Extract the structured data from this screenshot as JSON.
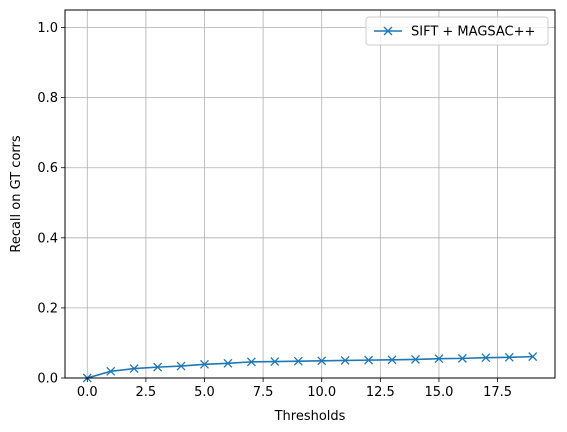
{
  "chart_data": {
    "type": "line",
    "title": "",
    "xlabel": "Thresholds",
    "ylabel": "Recall on GT corrs",
    "xlim": [
      -0.95,
      19.95
    ],
    "ylim": [
      0.0,
      1.05
    ],
    "x_ticks": [
      0.0,
      2.5,
      5.0,
      7.5,
      10.0,
      12.5,
      15.0,
      17.5
    ],
    "x_tick_labels": [
      "0.0",
      "2.5",
      "5.0",
      "7.5",
      "10.0",
      "12.5",
      "15.0",
      "17.5"
    ],
    "y_ticks": [
      0.0,
      0.2,
      0.4,
      0.6,
      0.8,
      1.0
    ],
    "y_tick_labels": [
      "0.0",
      "0.2",
      "0.4",
      "0.6",
      "0.8",
      "1.0"
    ],
    "grid": true,
    "legend_position": "top-right",
    "series": [
      {
        "name": "SIFT + MAGSAC++",
        "color": "#1f77b4",
        "marker": "x",
        "x": [
          0,
          1,
          2,
          3,
          4,
          5,
          6,
          7,
          8,
          9,
          10,
          11,
          12,
          13,
          14,
          15,
          16,
          17,
          18,
          19
        ],
        "y": [
          0.0,
          0.019,
          0.027,
          0.031,
          0.034,
          0.039,
          0.042,
          0.046,
          0.047,
          0.048,
          0.049,
          0.05,
          0.051,
          0.052,
          0.053,
          0.055,
          0.056,
          0.058,
          0.059,
          0.061
        ]
      }
    ]
  }
}
